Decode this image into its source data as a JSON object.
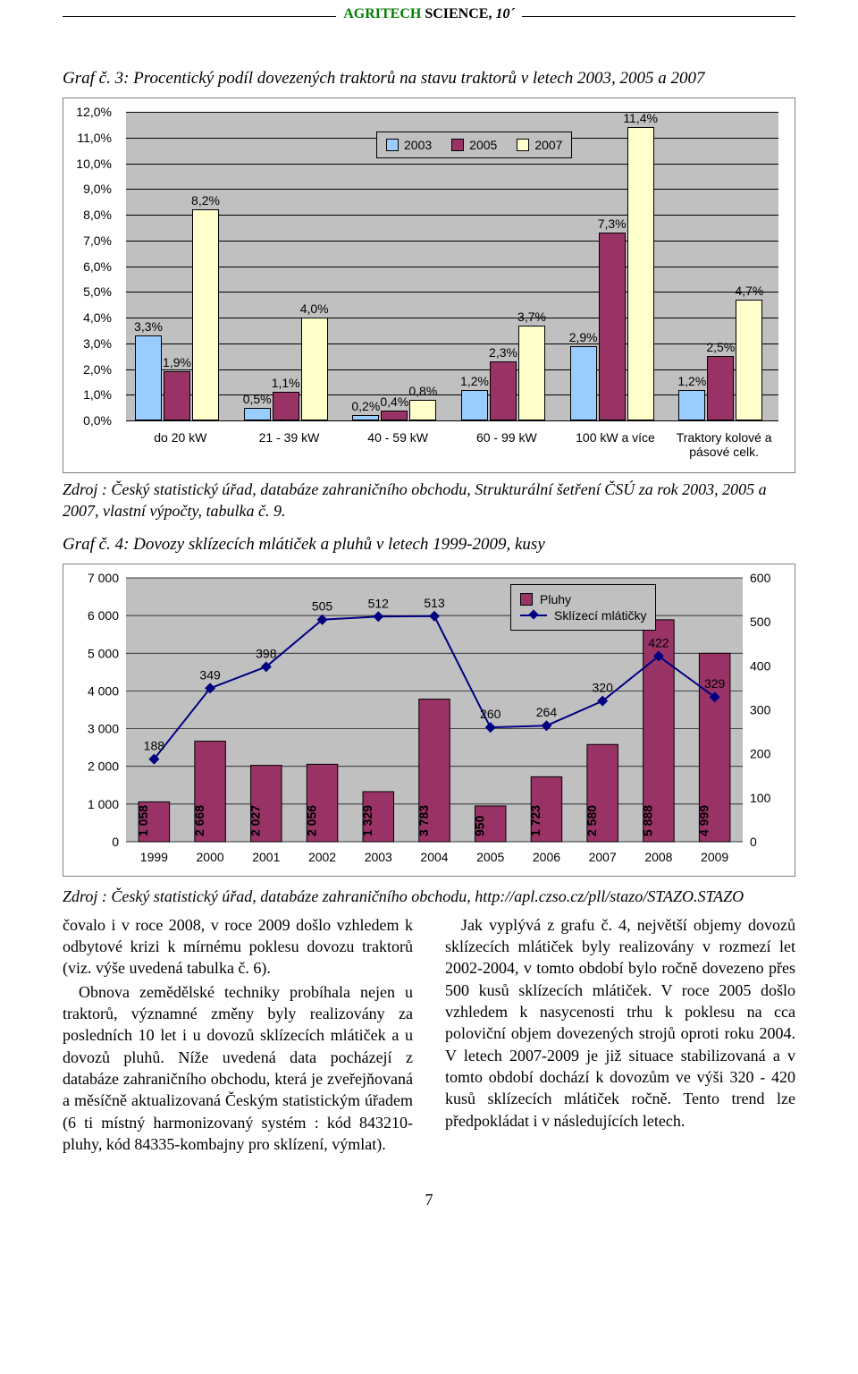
{
  "journal": {
    "title_green": "AGRITECH",
    "title_black": " SCIENCE, ",
    "issue": "10´"
  },
  "chart1": {
    "type": "bar-grouped",
    "caption": "Graf č. 3: Procentický podíl dovezených traktorů na stavu traktorů v letech 2003, 2005 a 2007",
    "source": "Zdroj : Český statistický úřad, databáze zahraničního obchodu, Strukturální šetření ČSÚ za rok 2003, 2005 a 2007, vlastní výpočty, tabulka č. 9.",
    "background_color": "#c0c0c0",
    "grid_color": "#000000",
    "ymin": 0.0,
    "ymax": 12.0,
    "ytick_step": 1.0,
    "ytick_labels": [
      "0,0%",
      "1,0%",
      "2,0%",
      "3,0%",
      "4,0%",
      "5,0%",
      "6,0%",
      "7,0%",
      "8,0%",
      "9,0%",
      "10,0%",
      "11,0%",
      "12,0%"
    ],
    "series": [
      {
        "name": "2003",
        "color": "#99ccff"
      },
      {
        "name": "2005",
        "color": "#993366"
      },
      {
        "name": "2007",
        "color": "#ffffcc"
      }
    ],
    "categories": [
      {
        "label": "do 20 kW",
        "values": [
          3.3,
          1.9,
          8.2
        ],
        "labels": [
          "3,3%",
          "1,9%",
          "8,2%"
        ]
      },
      {
        "label": "21 - 39 kW",
        "values": [
          0.5,
          1.1,
          4.0
        ],
        "labels": [
          "0,5%",
          "1,1%",
          "4,0%"
        ]
      },
      {
        "label": "40 - 59 kW",
        "values": [
          0.2,
          0.4,
          0.8
        ],
        "labels": [
          "0,2%",
          "0,4%",
          "0,8%"
        ]
      },
      {
        "label": "60 - 99 kW",
        "values": [
          1.2,
          2.3,
          3.7
        ],
        "labels": [
          "1,2%",
          "2,3%",
          "3,7%"
        ]
      },
      {
        "label": "100 kW a více",
        "values": [
          2.9,
          7.3,
          11.4
        ],
        "labels": [
          "2,9%",
          "7,3%",
          "11,4%"
        ]
      },
      {
        "label": "Traktory kolové a pásové celk.",
        "values": [
          1.2,
          2.5,
          4.7
        ],
        "labels": [
          "1,2%",
          "2,5%",
          "4,7%"
        ]
      }
    ]
  },
  "chart2": {
    "type": "combo-bar-line",
    "caption": "Graf č. 4: Dovozy sklízecích mlátiček a pluhů v letech 1999-2009, kusy",
    "source": "Zdroj : Český statistický úřad, databáze zahraničního obchodu, http://apl.czso.cz/pll/stazo/STAZO.STAZO",
    "background_color": "#c0c0c0",
    "axis_font": 14,
    "x_labels": [
      "1999",
      "2000",
      "2001",
      "2002",
      "2003",
      "2004",
      "2005",
      "2006",
      "2007",
      "2008",
      "2009"
    ],
    "bars": {
      "name": "Pluhy",
      "color": "#993366",
      "values": [
        1058,
        2668,
        2027,
        2056,
        1329,
        3783,
        950,
        1723,
        2580,
        5888,
        4999
      ],
      "labels": [
        "1 058",
        "2 668",
        "2 027",
        "2 056",
        "1 329",
        "3 783",
        "950",
        "1 723",
        "2 580",
        "5 888",
        "4 999"
      ],
      "ymin": 0,
      "ymax": 7000,
      "ytick_step": 1000,
      "ytick_labels": [
        "0",
        "1 000",
        "2 000",
        "3 000",
        "4 000",
        "5 000",
        "6 000",
        "7 000"
      ]
    },
    "line": {
      "name": "Sklízecí mlátičky",
      "color": "#000080",
      "values": [
        188,
        349,
        398,
        505,
        512,
        513,
        260,
        264,
        320,
        422,
        329
      ],
      "labels": [
        "188",
        "349",
        "398",
        "505",
        "512",
        "513",
        "260",
        "264",
        "320",
        "422",
        "329"
      ],
      "ymin": 0,
      "ymax": 600,
      "ytick_step": 100,
      "ytick_labels": [
        "0",
        "100",
        "200",
        "300",
        "400",
        "500",
        "600"
      ]
    }
  },
  "body": {
    "left_p1": "čovalo i v roce 2008, v roce 2009 došlo vzhledem k odbytové krizi k mírnému poklesu dovozu traktorů (viz. výše uvedená tabulka č. 6).",
    "left_p2": "Obnova zemědělské techniky probíhala nejen u traktorů, významné změny byly realizovány za posledních 10 let i u dovozů sklízecích mlátiček a u dovozů pluhů. Níže uvedená data pocházejí z databáze zahraničního obchodu, která je zveřejňovaná a měsíčně aktualizovaná Českým statistickým úřadem (6 ti místný harmonizovaný systém : kód 843210-pluhy, kód 84335-kombajny pro sklízení, výmlat).",
    "right_p1": "Jak vyplývá z grafu č. 4, největší objemy dovozů sklízecích mlátiček byly realizovány v rozmezí let 2002-2004, v tomto období bylo ročně dovezeno přes 500 kusů sklízecích mlátiček. V roce 2005 došlo vzhledem k nasycenosti trhu k poklesu na cca poloviční objem dovezených strojů oproti roku 2004. V letech 2007-2009 je již situace stabilizovaná a v tomto období dochází k dovozům ve výši 320 - 420 kusů sklízecích mlátiček ročně. Tento trend lze předpokládat i v následujících letech."
  },
  "page_number": "7"
}
